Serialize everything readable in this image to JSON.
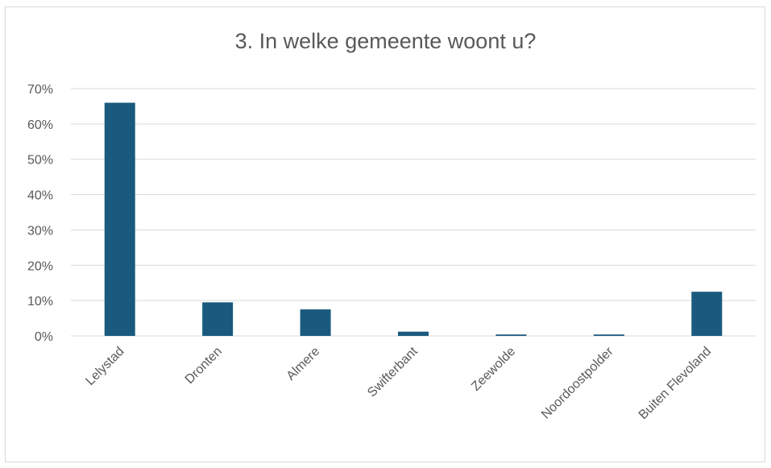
{
  "chart_data": {
    "type": "bar",
    "title": "3. In welke gemeente woont u?",
    "xlabel": "",
    "ylabel": "",
    "categories": [
      "Lelystad",
      "Dronten",
      "Almere",
      "Swifterbant",
      "Zeewolde",
      "Noordoostpolder",
      "Buiten Flevoland"
    ],
    "values": [
      66,
      9.5,
      7.5,
      1.2,
      0.4,
      0.4,
      12.5
    ],
    "ylim": [
      0,
      70
    ],
    "yticks": [
      "0%",
      "10%",
      "20%",
      "30%",
      "40%",
      "50%",
      "60%",
      "70%"
    ],
    "grid": true,
    "legend": "none",
    "colors": {
      "bar": "#1a5a7e",
      "grid": "#d9d9d9",
      "text": "#595959"
    }
  }
}
